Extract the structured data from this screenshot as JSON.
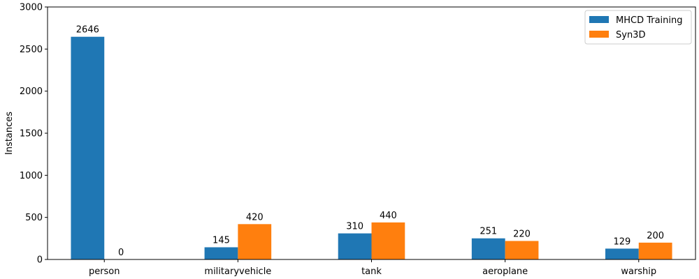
{
  "chart_data": {
    "type": "bar",
    "categories": [
      "person",
      "militaryvehicle",
      "tank",
      "aeroplane",
      "warship"
    ],
    "series": [
      {
        "name": "MHCD Training",
        "values": [
          2646,
          145,
          310,
          251,
          129
        ],
        "color": "#1f77b4"
      },
      {
        "name": "Syn3D",
        "values": [
          0,
          420,
          440,
          220,
          200
        ],
        "color": "#ff7f0e"
      }
    ],
    "ylabel": "Instances",
    "xlabel": "",
    "ylim": [
      0,
      3000
    ],
    "yticks": [
      0,
      500,
      1000,
      1500,
      2000,
      2500,
      3000
    ],
    "legend": "top-right",
    "grid": false,
    "data_labels": true
  }
}
